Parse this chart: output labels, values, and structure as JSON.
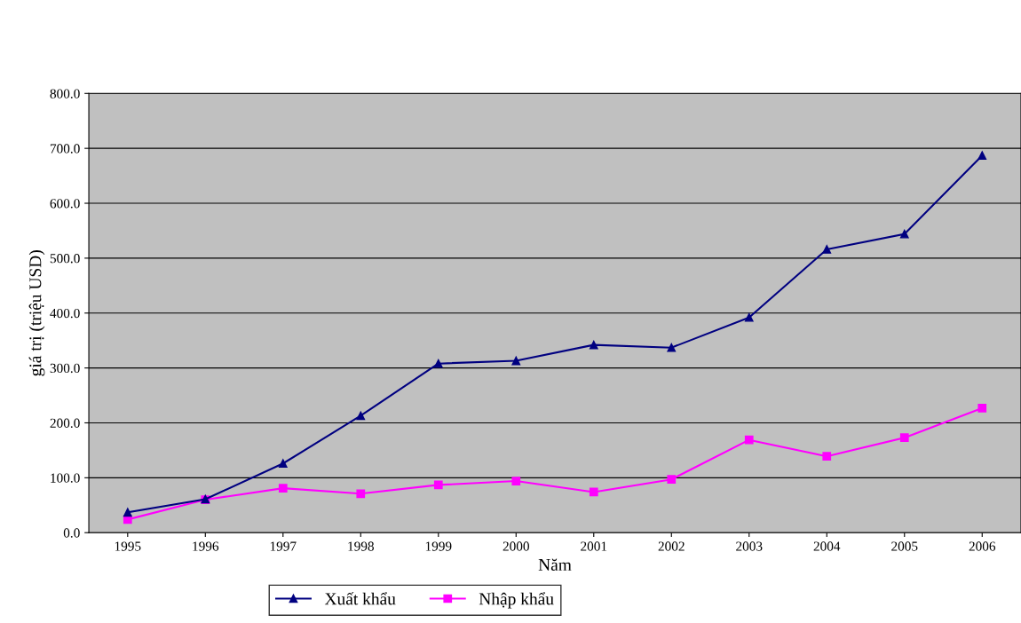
{
  "chart_data": {
    "type": "line",
    "xlabel": "Năm",
    "ylabel": "giá trị (triệu USD)",
    "categories": [
      "1995",
      "1996",
      "1997",
      "1998",
      "1999",
      "2000",
      "2001",
      "2002",
      "2003",
      "2004",
      "2005",
      "2006"
    ],
    "series": [
      {
        "name": "Xuất khẩu",
        "color": "#000080",
        "marker": "triangle",
        "values": [
          37,
          61,
          126,
          213,
          308,
          313,
          342,
          337,
          392,
          516,
          544,
          687
        ]
      },
      {
        "name": "Nhập khẩu",
        "color": "#ff00ff",
        "marker": "square",
        "values": [
          24,
          60,
          81,
          71,
          87,
          94,
          74,
          97,
          169,
          139,
          173,
          227
        ]
      }
    ],
    "ylim": [
      0,
      800
    ],
    "yticks": [
      {
        "value": 0,
        "label": "0.0"
      },
      {
        "value": 100,
        "label": "100.0"
      },
      {
        "value": 200,
        "label": "200.0"
      },
      {
        "value": 300,
        "label": "300.0"
      },
      {
        "value": 400,
        "label": "400.0"
      },
      {
        "value": 500,
        "label": "500.0"
      },
      {
        "value": 600,
        "label": "600.0"
      },
      {
        "value": 700,
        "label": "700.0"
      },
      {
        "value": 800,
        "label": "800.0"
      }
    ],
    "grid": "y",
    "legend": "bottom",
    "line_style": "solid"
  }
}
